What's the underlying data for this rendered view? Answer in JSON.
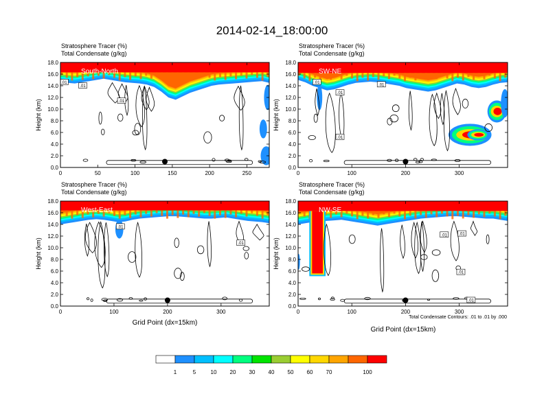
{
  "figure": {
    "title": "2014-02-14_18:00:00",
    "x_axis_title": "Grid Point (dx=15km)",
    "contour_note": "Total Condensate Contours: .01 to .01 by .000",
    "contour_label": ".01"
  },
  "colorbar": {
    "labels": [
      "1",
      "5",
      "10",
      "20",
      "30",
      "40",
      "50",
      "60",
      "70",
      "100"
    ],
    "colors": [
      "#ffffff",
      "#1e90ff",
      "#00bfff",
      "#00ffff",
      "#00ff7f",
      "#00e400",
      "#9acd32",
      "#ffff00",
      "#ffd700",
      "#ffa500",
      "#ff6600",
      "#ff0000"
    ]
  },
  "chart_data": [
    {
      "type": "heatmap",
      "panel_label": "South-North",
      "title_lines": [
        "Stratosphere Tracer   (%)",
        "Total Condensate   (g/kg)"
      ],
      "ylabel": "Height (km)",
      "xlim": [
        0,
        280
      ],
      "ylim": [
        0,
        18
      ],
      "xticks": [
        0,
        50,
        100,
        150,
        200,
        250
      ],
      "yticks": [
        "0.0",
        "2.0",
        "4.0",
        "6.0",
        "8.0",
        "10.0",
        "12.0",
        "14.0",
        "16.0",
        "18.0"
      ],
      "tracer_top_km": 16.3,
      "gradient_base_km": [
        14.6,
        14.5,
        14.4,
        14.6,
        14.8,
        15.0,
        15.2,
        15.0,
        14.8,
        14.6,
        14.5,
        14.4,
        14.2,
        13.8,
        13.0,
        12.0,
        11.6,
        12.2,
        12.8,
        13.2,
        13.6,
        14.0,
        14.2,
        14.3,
        14.4,
        14.5,
        14.6,
        14.7,
        14.8,
        14.5
      ],
      "extra_blobs": [
        {
          "x": 276,
          "y": 2.0,
          "rx": 6,
          "ry": 1.2
        },
        {
          "x": 272,
          "y": 6.6,
          "rx": 4,
          "ry": 1.2
        },
        {
          "x": 278,
          "y": 12.0,
          "rx": 4,
          "ry": 1.6
        }
      ],
      "marker": {
        "x": 140,
        "y": 1.0
      },
      "contour_label_positions": [
        [
          5,
          14.6
        ],
        [
          30,
          14.0
        ],
        [
          82,
          11.4
        ]
      ]
    },
    {
      "type": "heatmap",
      "panel_label": "SW-NE",
      "title_lines": [
        "Stratosphere Tracer   (%)",
        "Total Condensate   (g/kg)"
      ],
      "ylabel": "Height (km)",
      "xlim": [
        0,
        390
      ],
      "ylim": [
        0,
        18
      ],
      "xticks": [
        0,
        100,
        200,
        300
      ],
      "yticks": [
        "0.0",
        "2.0",
        "4.0",
        "6.0",
        "8.0",
        "10.0",
        "12.0",
        "14.0",
        "16.0",
        "18.0"
      ],
      "tracer_top_km": 16.2,
      "gradient_base_km": [
        15.0,
        14.6,
        14.0,
        13.6,
        13.2,
        13.4,
        13.8,
        14.2,
        14.5,
        14.6,
        14.7,
        14.6,
        14.4,
        14.2,
        14.0,
        13.6,
        13.4,
        13.2,
        13.0,
        13.2,
        13.6,
        14.0,
        14.4,
        14.2,
        13.8,
        13.6,
        13.8,
        14.2,
        14.5,
        14.6
      ],
      "extra_blobs": [
        {
          "x": 320,
          "y": 5.6,
          "rx": 32,
          "ry": 1.4
        },
        {
          "x": 335,
          "y": 5.6,
          "rx": 16,
          "ry": 0.7
        },
        {
          "x": 370,
          "y": 9.6,
          "rx": 14,
          "ry": 1.4
        },
        {
          "x": 385,
          "y": 11.0,
          "rx": 6,
          "ry": 1.8
        },
        {
          "x": 40,
          "y": 12.0,
          "rx": 4,
          "ry": 1.6
        }
      ],
      "marker": {
        "x": 200,
        "y": 1.0
      },
      "contour_label_positions": [
        [
          35,
          14.6
        ],
        [
          78,
          12.8
        ],
        [
          155,
          14.2
        ],
        [
          78,
          5.2
        ]
      ]
    },
    {
      "type": "heatmap",
      "panel_label": "West-East",
      "title_lines": [
        "Stratosphere Tracer   (%)",
        "Total Condensate   (g/kg)"
      ],
      "ylabel": "Height (km)",
      "xlim": [
        0,
        390
      ],
      "ylim": [
        0,
        18
      ],
      "xticks": [
        0,
        100,
        200,
        300
      ],
      "yticks": [
        "0.0",
        "2.0",
        "4.0",
        "6.0",
        "8.0",
        "10.0",
        "12.0",
        "14.0",
        "16.0",
        "18.0"
      ],
      "tracer_top_km": 16.4,
      "gradient_base_km": [
        14.0,
        14.2,
        14.4,
        14.6,
        14.8,
        14.9,
        14.8,
        14.6,
        14.4,
        14.5,
        14.8,
        15.0,
        15.1,
        15.2,
        15.3,
        15.4,
        15.4,
        15.3,
        15.2,
        15.1,
        15.0,
        15.0,
        15.1,
        15.2,
        15.0,
        14.8,
        14.6,
        14.5,
        14.4,
        14.2
      ],
      "extra_blobs": [
        {
          "x": 110,
          "y": 13.2,
          "rx": 6,
          "ry": 1.2
        }
      ],
      "marker": {
        "x": 200,
        "y": 1.0
      },
      "contour_label_positions": [
        [
          112,
          13.6
        ],
        [
          337,
          10.8
        ]
      ]
    },
    {
      "type": "heatmap",
      "panel_label": "NW-SE",
      "title_lines": [
        "Stratosphere Tracer   (%)",
        "Total Condensate   (g/kg)"
      ],
      "ylabel": "Height (km)",
      "xlim": [
        0,
        390
      ],
      "ylim": [
        0,
        18
      ],
      "xticks": [
        0,
        100,
        200,
        300
      ],
      "yticks": [
        "0.0",
        "2.0",
        "4.0",
        "6.0",
        "8.0",
        "10.0",
        "12.0",
        "14.0",
        "16.0",
        "18.0"
      ],
      "tracer_top_km": 16.3,
      "gradient_base_km": [
        14.0,
        14.2,
        14.4,
        14.5,
        14.6,
        14.7,
        14.8,
        14.6,
        14.4,
        14.2,
        14.0,
        13.8,
        14.0,
        14.2,
        14.4,
        14.6,
        14.8,
        15.0,
        15.1,
        15.2,
        15.3,
        15.4,
        15.4,
        15.3,
        15.2,
        15.1,
        15.0,
        15.0,
        14.8,
        14.6
      ],
      "extra_blobs": [
        {
          "x": 1,
          "y": 7.6,
          "rx": 2,
          "ry": 1.0
        }
      ],
      "intrusion": {
        "x0": 26,
        "x1": 46,
        "bottom_km": 5.6
      },
      "marker": {
        "x": 200,
        "y": 1.0
      },
      "contour_label_positions": [
        [
          305,
          12.4
        ],
        [
          272,
          12.2
        ],
        [
          303,
          5.8
        ],
        [
          322,
          1.0
        ]
      ]
    }
  ]
}
